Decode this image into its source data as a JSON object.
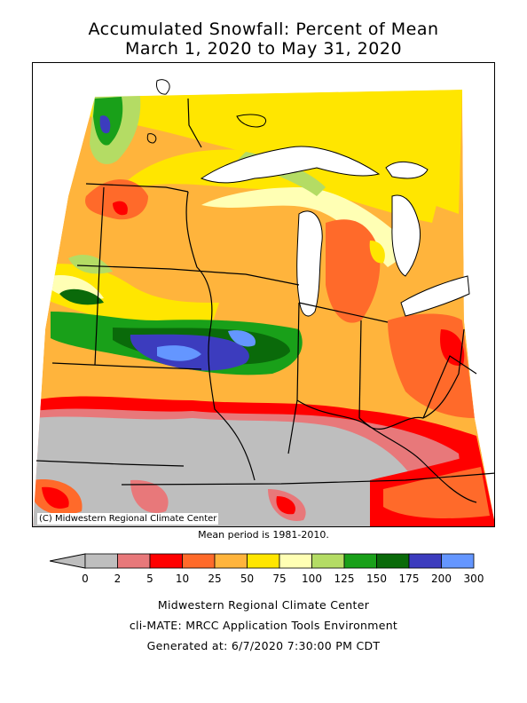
{
  "header": {
    "title_line1": "Accumulated Snowfall: Percent of Mean",
    "title_line2": "March 1, 2020 to May 31, 2020"
  },
  "map": {
    "credit": "(C) Midwestern Regional Climate Center",
    "mean_period": "Mean period is 1981-2010."
  },
  "legend": {
    "tick_labels": [
      "0",
      "2",
      "5",
      "10",
      "25",
      "50",
      "75",
      "100",
      "125",
      "150",
      "175",
      "200",
      "300"
    ],
    "colors": [
      "#bebebe",
      "#e8787a",
      "#ff0000",
      "#ff6a2a",
      "#ffb43c",
      "#ffe600",
      "#ffffb4",
      "#b4dc64",
      "#19a019",
      "#0a6a0a",
      "#3c3cbe",
      "#6496ff"
    ],
    "below_arrow_color": "#bebebe"
  },
  "footer": {
    "line1": "Midwestern Regional Climate Center",
    "line2": "cli-MATE: MRCC Application Tools Environment",
    "line3": "Generated at: 6/7/2020 7:30:00 PM CDT"
  }
}
